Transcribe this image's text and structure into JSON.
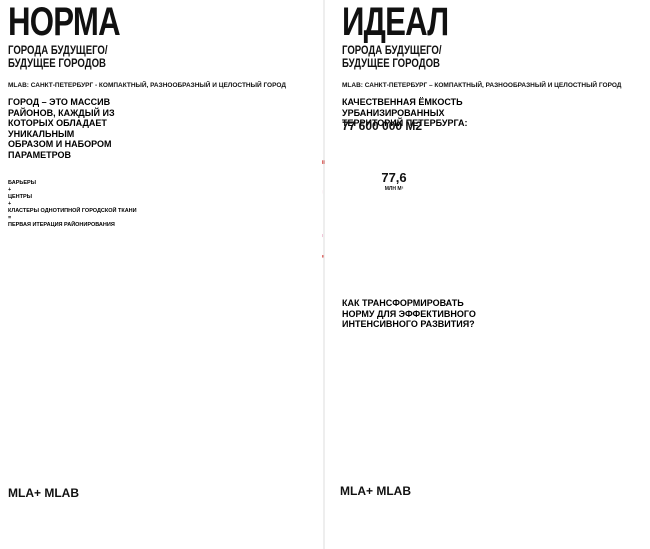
{
  "left": {
    "title": "НОРМА",
    "subtitle": [
      "ГОРОДА БУДУЩЕГО/",
      "БУДУЩЕЕ ГОРОДОВ"
    ],
    "tagline": "MLAB: САНКТ-ПЕТЕРБУРГ - КОМПАКТНЫЙ, РАЗНООБРАЗНЫЙ И ЦЕЛОСТНЫЙ ГОРОД",
    "heading": [
      "ГОРОД – ЭТО МАССИВ",
      "РАЙОНОВ, КАЖДЫЙ ИЗ",
      "КОТОРЫХ ОБЛАДАЕТ",
      "УНИКАЛЬНЫМ",
      "ОБРАЗОМ И НАБОРОМ",
      "ПАРАМЕТРОВ"
    ],
    "list": [
      "БАРЬЕРЫ",
      "+",
      "ЦЕНТРЫ",
      "+",
      "КЛАСТЕРЫ ОДНОТИПНОЙ ГОРОДСКОЙ ТКАНИ",
      "=",
      "ПЕРВАЯ ИТЕРАЦИЯ РАЙОНИРОВАНИЯ"
    ],
    "footer": "MLA+ MLAB"
  },
  "right": {
    "title": "ИДЕАЛ",
    "subtitle": [
      "ГОРОДА БУДУЩЕГО/",
      "БУДУЩЕЕ ГОРОДОВ"
    ],
    "tagline": "MLAB: САНКТ-ПЕТЕРБУРГ – КОМПАКТНЫЙ, РАЗНООБРАЗНЫЙ И ЦЕЛОСТНЫЙ ГОРОД",
    "heading": [
      "КАЧЕСТВЕННАЯ ЁМКОСТЬ",
      "УРБАНИЗИРОВАННЫХ",
      "ТЕРРИТОРИЙ ПЕТЕРБУРГА:"
    ],
    "total": "77 600 000 М2",
    "donut_value": "77,6",
    "donut_unit": "МЛН М²",
    "question": [
      "КАК ТРАНСФОРМИРОВАТЬ",
      "НОРМУ ДЛЯ ЭФФЕКТИВНОГО",
      "ИНТЕНСИВНОГО РАЗВИТИЯ?"
    ],
    "footer": "MLA+ MLAB"
  }
}
